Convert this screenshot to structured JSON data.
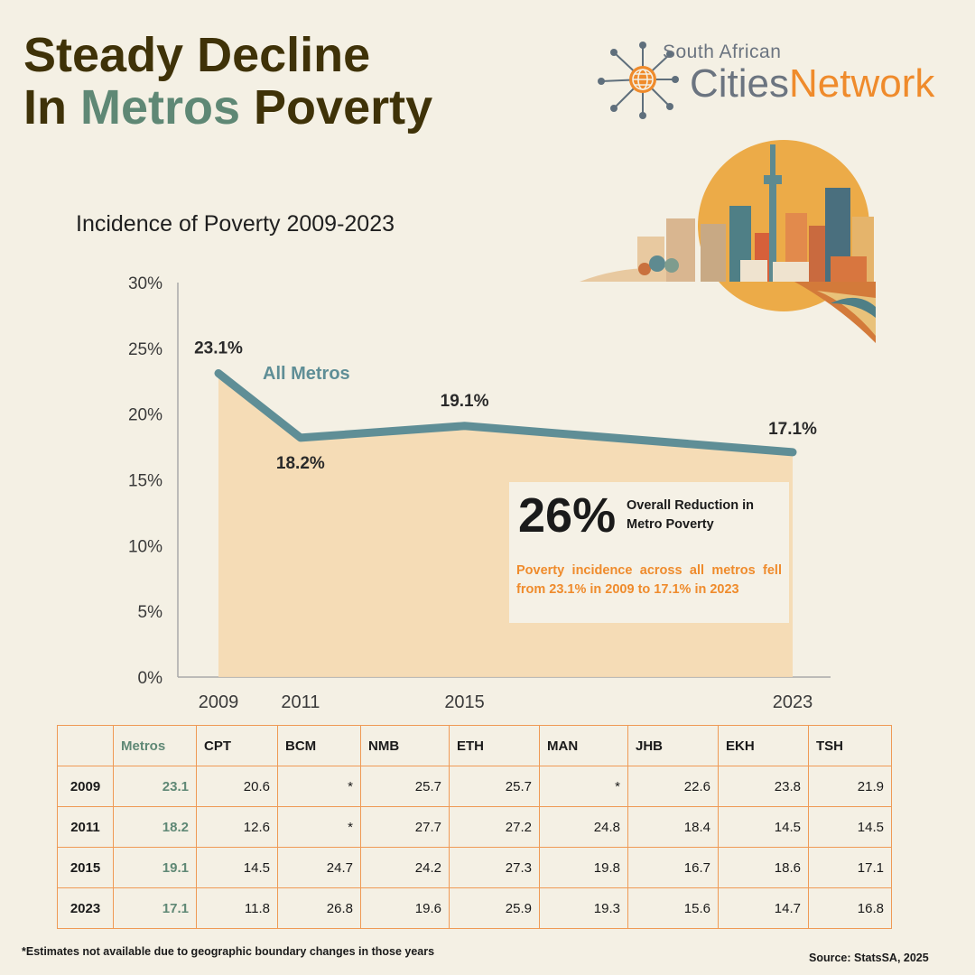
{
  "header": {
    "title_line1": "Steady Decline",
    "title_line2_pre": "In ",
    "title_line2_accent": "Metros",
    "title_line2_post": " Poverty"
  },
  "logo": {
    "line1": "South African",
    "line2_a": "Cities",
    "line2_b": "Network"
  },
  "colors": {
    "title": "#3f3208",
    "accent_green": "#5f8875",
    "line": "#5f8e96",
    "area": "#f5d9b0",
    "orange": "#ef8b2c"
  },
  "chart_data": {
    "type": "area",
    "title": "Incidence of Poverty 2009-2023",
    "x": [
      2009,
      2011,
      2015,
      2023
    ],
    "categories": [
      "2009",
      "2011",
      "2015",
      "2023"
    ],
    "series": [
      {
        "name": "All Metros",
        "values": [
          23.1,
          18.2,
          19.1,
          17.1
        ]
      }
    ],
    "value_labels": [
      "23.1%",
      "18.2%",
      "19.1%",
      "17.1%"
    ],
    "yticks": [
      "0%",
      "5%",
      "10%",
      "15%",
      "20%",
      "25%",
      "30%"
    ],
    "ylim": [
      0,
      30
    ],
    "xlim": [
      2009,
      2023
    ],
    "grid": false
  },
  "callout": {
    "big": "26%",
    "headline": "Overall Reduction in Metro Poverty",
    "description": "Poverty incidence across all metros fell from 23.1% in 2009 to 17.1% in 2023"
  },
  "table": {
    "headers": [
      "",
      "Metros",
      "CPT",
      "BCM",
      "NMB",
      "ETH",
      "MAN",
      "JHB",
      "EKH",
      "TSH"
    ],
    "rows": [
      [
        "2009",
        "23.1",
        "20.6",
        "*",
        "25.7",
        "25.7",
        "*",
        "22.6",
        "23.8",
        "21.9"
      ],
      [
        "2011",
        "18.2",
        "12.6",
        "*",
        "27.7",
        "27.2",
        "24.8",
        "18.4",
        "14.5",
        "14.5"
      ],
      [
        "2015",
        "19.1",
        "14.5",
        "24.7",
        "24.2",
        "27.3",
        "19.8",
        "16.7",
        "18.6",
        "17.1"
      ],
      [
        "2023",
        "17.1",
        "11.8",
        "26.8",
        "19.6",
        "25.9",
        "19.3",
        "15.6",
        "14.7",
        "16.8"
      ]
    ]
  },
  "footnote": "*Estimates not available due to geographic boundary changes in those years",
  "source": "Source: StatsSA, 2025"
}
